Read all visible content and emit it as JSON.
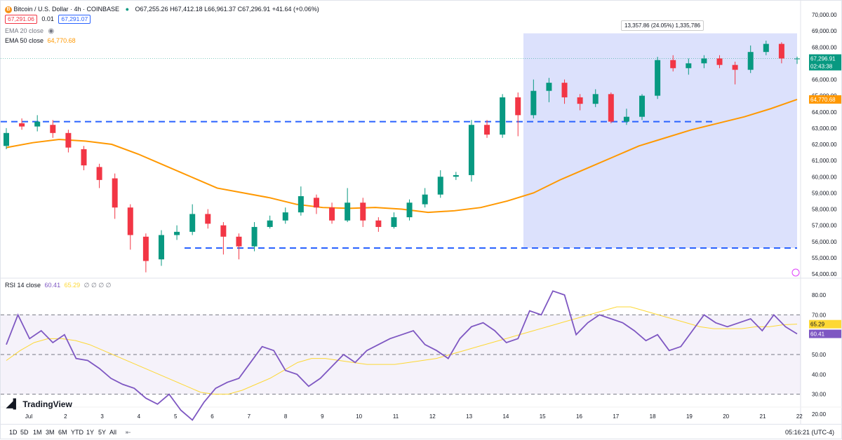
{
  "header": {
    "symbol": "Bitcoin / U.S. Dollar · 4h · COINBASE",
    "btc_icon": "B",
    "ohlc": "O67,255.26 H67,412.18 L66,961.37 C67,296.91 +41.64 (+0.06%)",
    "bid": "67,291.06",
    "spread": "0.01",
    "ask": "67,291.07",
    "ema20": "EMA 20 close",
    "ema50": "EMA 50 close",
    "ema50_value": "64,770.68",
    "eye_icon": "eye-icon"
  },
  "measure_label": "13,357.86 (24.05%) 1,335,786",
  "price_axis": [
    "70,000.00",
    "69,000.00",
    "68,000.00",
    "67,000.00",
    "66,000.00",
    "65,000.00",
    "64,000.00",
    "63,000.00",
    "62,000.00",
    "61,000.00",
    "60,000.00",
    "59,000.00",
    "58,000.00",
    "57,000.00",
    "56,000.00",
    "55,000.00",
    "54,000.00"
  ],
  "last_price_tag": "67,296.91",
  "countdown_tag": "02:43:38",
  "ema_tag": "64,770.68",
  "rsi": {
    "label": "RSI 14 close",
    "value": "60.41",
    "ma_value": "65.29",
    "extra": "∅ ∅ ∅ ∅",
    "axis": [
      "80.00",
      "70.00",
      "60.00",
      "50.00",
      "40.00",
      "30.00",
      "20.00"
    ]
  },
  "time_axis": [
    "Jul",
    "2",
    "3",
    "4",
    "5",
    "6",
    "7",
    "8",
    "9",
    "10",
    "11",
    "12",
    "13",
    "14",
    "15",
    "16",
    "17",
    "18",
    "19",
    "20",
    "21",
    "22"
  ],
  "logo": "TradingView",
  "toolbar": {
    "ranges": [
      "1D",
      "5D",
      "1M",
      "3M",
      "6M",
      "YTD",
      "1Y",
      "5Y",
      "All"
    ],
    "time": "05:16:21 (UTC-4)"
  },
  "colors": {
    "up": "#089981",
    "down": "#f23645",
    "ema50": "#ff9800",
    "rsi": "#7e57c2",
    "rsi_ma": "#fdd835",
    "hline": "#2962ff",
    "range_fill": "#d6dcfc"
  },
  "chart_data": {
    "type": "candlestick",
    "price_range": [
      54000,
      70000
    ],
    "ema50_close": [
      61800,
      62100,
      62300,
      62200,
      62000,
      61400,
      60700,
      60000,
      59300,
      59000,
      58700,
      58300,
      58100,
      58050,
      58100,
      58000,
      57800,
      57900,
      58100,
      58500,
      59000,
      59800,
      60500,
      61200,
      61900,
      62400,
      62900,
      63300,
      63700,
      64200,
      64770.68
    ],
    "candles": [
      [
        61900,
        62700,
        61700,
        63000
      ],
      [
        63300,
        63100,
        62900,
        63600
      ],
      [
        63100,
        63400,
        62800,
        63800
      ],
      [
        63200,
        62700,
        62400,
        63500
      ],
      [
        62700,
        61800,
        61500,
        62900
      ],
      [
        61700,
        60700,
        60400,
        61900
      ],
      [
        60600,
        59800,
        59300,
        60800
      ],
      [
        59900,
        58100,
        57400,
        60200
      ],
      [
        58100,
        56400,
        55500,
        58300
      ],
      [
        56300,
        54800,
        54100,
        56500
      ],
      [
        54900,
        56400,
        54500,
        56700
      ],
      [
        56400,
        56600,
        56100,
        57000
      ],
      [
        56600,
        57700,
        56400,
        58300
      ],
      [
        57700,
        57100,
        56800,
        58000
      ],
      [
        57000,
        56300,
        55200,
        57200
      ],
      [
        56300,
        55700,
        54900,
        56500
      ],
      [
        55700,
        56900,
        55400,
        57200
      ],
      [
        56900,
        57300,
        56800,
        57600
      ],
      [
        57300,
        57800,
        57100,
        58100
      ],
      [
        57800,
        58800,
        57600,
        59400
      ],
      [
        58700,
        58100,
        57700,
        58900
      ],
      [
        58100,
        57300,
        57100,
        58400
      ],
      [
        57300,
        58400,
        57200,
        59300
      ],
      [
        58400,
        57300,
        56900,
        58700
      ],
      [
        57300,
        56900,
        56600,
        57500
      ],
      [
        56900,
        57500,
        56800,
        57800
      ],
      [
        57500,
        58400,
        57300,
        58600
      ],
      [
        58300,
        58900,
        58100,
        59300
      ],
      [
        58900,
        60000,
        58700,
        60400
      ],
      [
        60000,
        60100,
        59800,
        60300
      ],
      [
        60100,
        63200,
        59700,
        63500
      ],
      [
        63200,
        62600,
        62400,
        63500
      ],
      [
        62600,
        64900,
        62400,
        65100
      ],
      [
        64900,
        63800,
        62500,
        65200
      ],
      [
        63800,
        65300,
        63600,
        66000
      ],
      [
        65300,
        65800,
        64600,
        66100
      ],
      [
        65800,
        64900,
        64500,
        66000
      ],
      [
        64900,
        64500,
        64100,
        65100
      ],
      [
        64500,
        65100,
        64300,
        65400
      ],
      [
        65100,
        63400,
        63300,
        65200
      ],
      [
        63400,
        63700,
        63200,
        64200
      ],
      [
        63700,
        65000,
        63500,
        65100
      ],
      [
        65000,
        67200,
        64800,
        67400
      ],
      [
        67200,
        66700,
        66500,
        67500
      ],
      [
        66700,
        67000,
        66300,
        67300
      ],
      [
        67000,
        67300,
        66700,
        67500
      ],
      [
        67300,
        66900,
        66700,
        67500
      ],
      [
        66900,
        66600,
        65700,
        67100
      ],
      [
        66600,
        67700,
        66400,
        68100
      ],
      [
        67700,
        68200,
        67500,
        68400
      ],
      [
        68200,
        67300,
        67000,
        68300
      ],
      [
        67255.26,
        67296.91,
        66961.37,
        67412.18
      ]
    ],
    "rsi_values": [
      55,
      70,
      58,
      62,
      56,
      60,
      48,
      47,
      43,
      38,
      35,
      33,
      28,
      25,
      30,
      22,
      17,
      26,
      33,
      36,
      38,
      46,
      54,
      52,
      42,
      40,
      34,
      38,
      44,
      50,
      46,
      52,
      55,
      58,
      60,
      62,
      55,
      52,
      48,
      58,
      64,
      66,
      62,
      56,
      58,
      72,
      70,
      82,
      80,
      60,
      66,
      70,
      68,
      66,
      62,
      57,
      60,
      52,
      54,
      62,
      70,
      66,
      64,
      66,
      68,
      62,
      70,
      64,
      60.41
    ],
    "rsi_ma": [
      47,
      52,
      56,
      58,
      58,
      57,
      55,
      52,
      49,
      46,
      43,
      40,
      37,
      34,
      31,
      30,
      30,
      32,
      35,
      38,
      42,
      46,
      48,
      48,
      47,
      46,
      45,
      45,
      45,
      46,
      47,
      48,
      50,
      52,
      54,
      56,
      58,
      60,
      62,
      64,
      66,
      68,
      70,
      72,
      74,
      74,
      72,
      70,
      68,
      66,
      64,
      63,
      63,
      63,
      64,
      64,
      65,
      65.29
    ],
    "rsi_axis": [
      20,
      80
    ],
    "h_levels": [
      63400,
      55600
    ],
    "measure_range": {
      "from": 55600,
      "to": 68850
    }
  }
}
